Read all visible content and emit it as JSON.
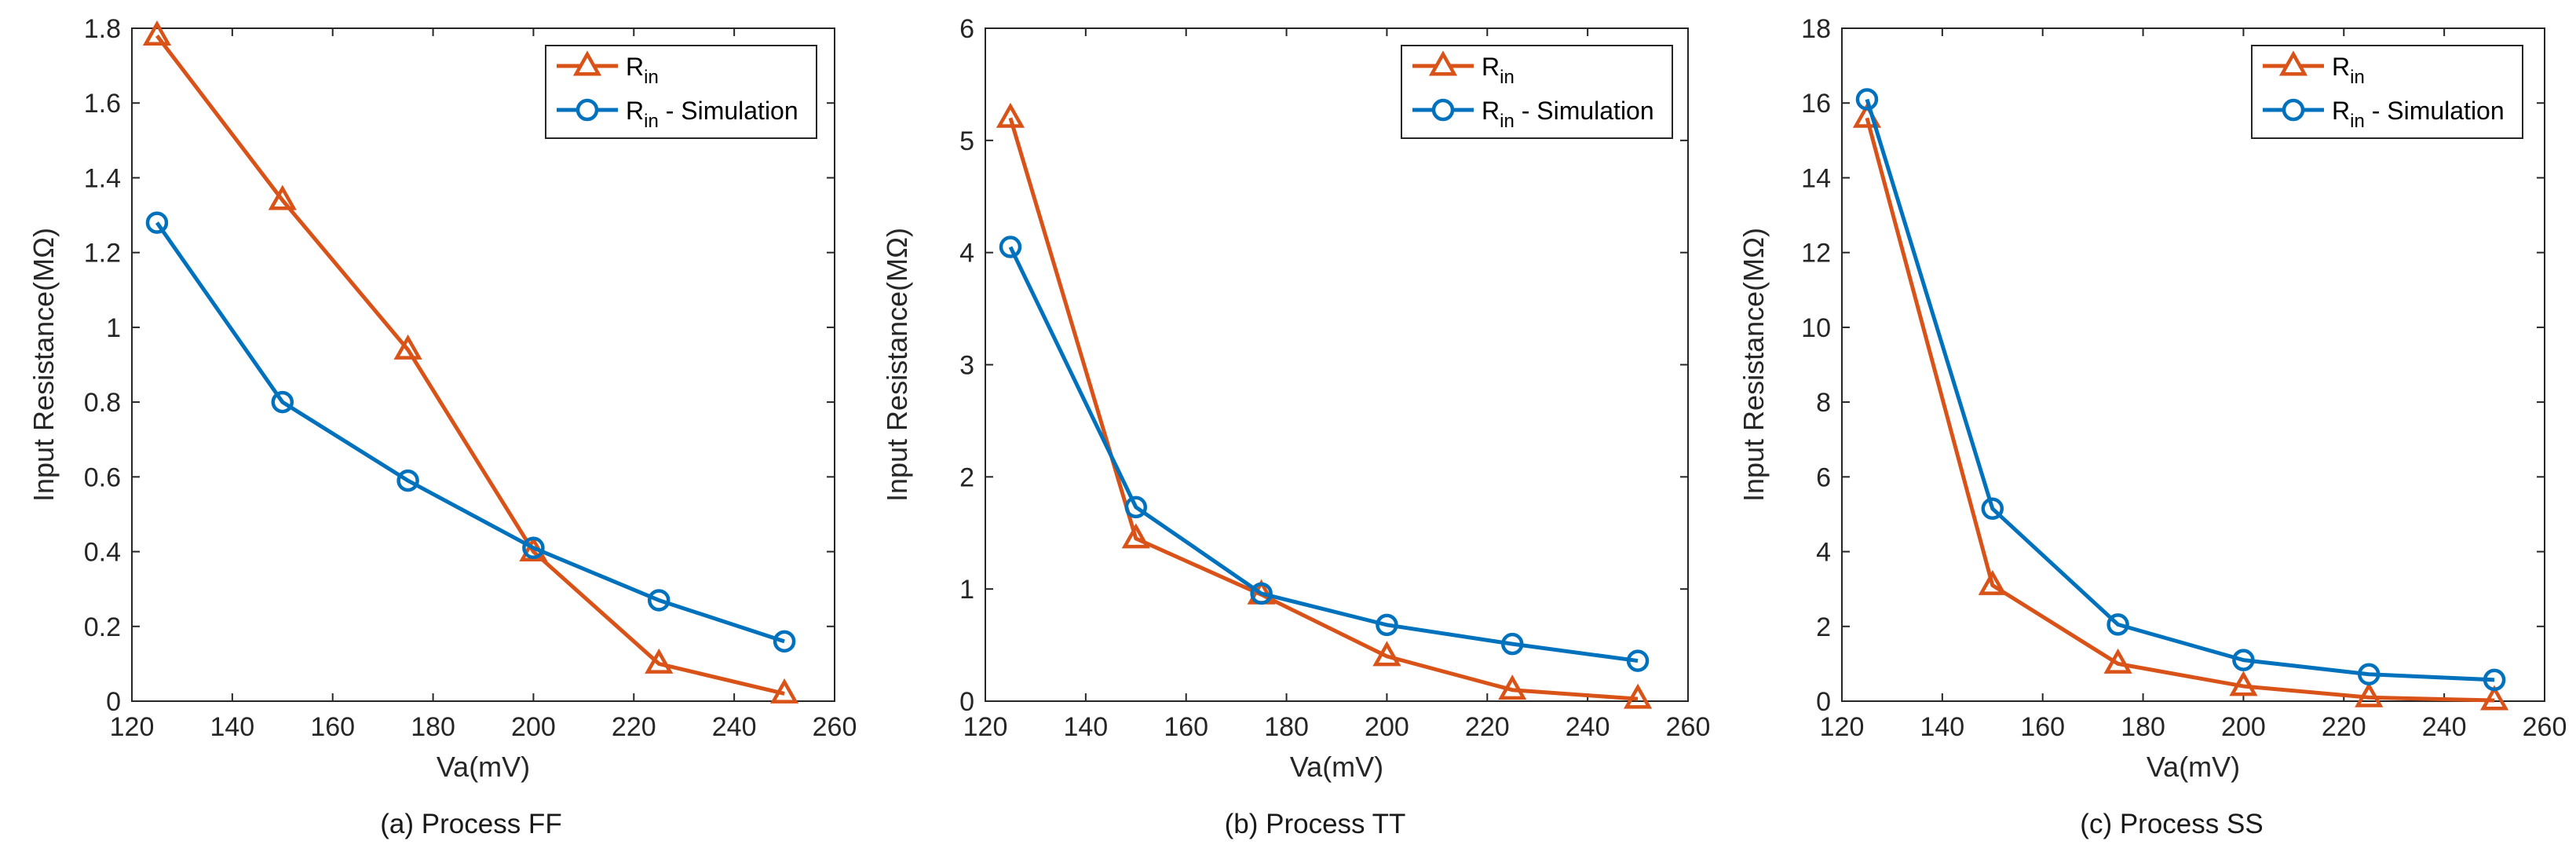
{
  "chart_data": [
    {
      "type": "line",
      "caption": "(a) Process FF",
      "xlabel": "Va(mV)",
      "ylabel": "Input Resistance(MΩ)",
      "xlim": [
        120,
        260
      ],
      "ylim": [
        0,
        1.8
      ],
      "xticks": [
        120,
        140,
        160,
        180,
        200,
        220,
        240,
        260
      ],
      "yticks": [
        0,
        0.2,
        0.4,
        0.6,
        0.8,
        1,
        1.2,
        1.4,
        1.6,
        1.8
      ],
      "ytick_labels": [
        "0",
        "0.2",
        "0.4",
        "0.6",
        "0.8",
        "1",
        "1.2",
        "1.4",
        "1.6",
        "1.8"
      ],
      "legend_position": "top-right",
      "series": [
        {
          "name": "R",
          "subscript": "in",
          "suffix": "",
          "marker": "triangle",
          "color": "#D95319",
          "x": [
            125,
            150,
            175,
            200,
            225,
            250
          ],
          "values": [
            1.78,
            1.34,
            0.94,
            0.4,
            0.1,
            0.02
          ]
        },
        {
          "name": "R",
          "subscript": "in",
          "suffix": " - Simulation",
          "marker": "circle",
          "color": "#0072BD",
          "x": [
            125,
            150,
            175,
            200,
            225,
            250
          ],
          "values": [
            1.28,
            0.8,
            0.59,
            0.41,
            0.27,
            0.16
          ]
        }
      ]
    },
    {
      "type": "line",
      "caption": "(b) Process TT",
      "xlabel": "Va(mV)",
      "ylabel": "Input Resistance(MΩ)",
      "xlim": [
        120,
        260
      ],
      "ylim": [
        0,
        6
      ],
      "xticks": [
        120,
        140,
        160,
        180,
        200,
        220,
        240,
        260
      ],
      "yticks": [
        0,
        1,
        2,
        3,
        4,
        5,
        6
      ],
      "ytick_labels": [
        "0",
        "1",
        "2",
        "3",
        "4",
        "5",
        "6"
      ],
      "legend_position": "top-right",
      "series": [
        {
          "name": "R",
          "subscript": "in",
          "suffix": "",
          "marker": "triangle",
          "color": "#D95319",
          "x": [
            125,
            150,
            175,
            200,
            225,
            250
          ],
          "values": [
            5.2,
            1.45,
            0.95,
            0.4,
            0.1,
            0.02
          ]
        },
        {
          "name": "R",
          "subscript": "in",
          "suffix": " - Simulation",
          "marker": "circle",
          "color": "#0072BD",
          "x": [
            125,
            150,
            175,
            200,
            225,
            250
          ],
          "values": [
            4.05,
            1.73,
            0.96,
            0.68,
            0.51,
            0.36
          ]
        }
      ]
    },
    {
      "type": "line",
      "caption": "(c) Process SS",
      "xlabel": "Va(mV)",
      "ylabel": "Input Resistance(MΩ)",
      "xlim": [
        120,
        260
      ],
      "ylim": [
        0,
        18
      ],
      "xticks": [
        120,
        140,
        160,
        180,
        200,
        220,
        240,
        260
      ],
      "yticks": [
        0,
        2,
        4,
        6,
        8,
        10,
        12,
        14,
        16,
        18
      ],
      "ytick_labels": [
        "0",
        "2",
        "4",
        "6",
        "8",
        "10",
        "12",
        "14",
        "16",
        "18"
      ],
      "legend_position": "top-right",
      "series": [
        {
          "name": "R",
          "subscript": "in",
          "suffix": "",
          "marker": "triangle",
          "color": "#D95319",
          "x": [
            125,
            150,
            175,
            200,
            225,
            250
          ],
          "values": [
            15.6,
            3.1,
            1.0,
            0.4,
            0.1,
            0.02
          ]
        },
        {
          "name": "R",
          "subscript": "in",
          "suffix": " - Simulation",
          "marker": "circle",
          "color": "#0072BD",
          "x": [
            125,
            150,
            175,
            200,
            225,
            250
          ],
          "values": [
            16.1,
            5.15,
            2.05,
            1.1,
            0.72,
            0.57
          ]
        }
      ]
    }
  ]
}
